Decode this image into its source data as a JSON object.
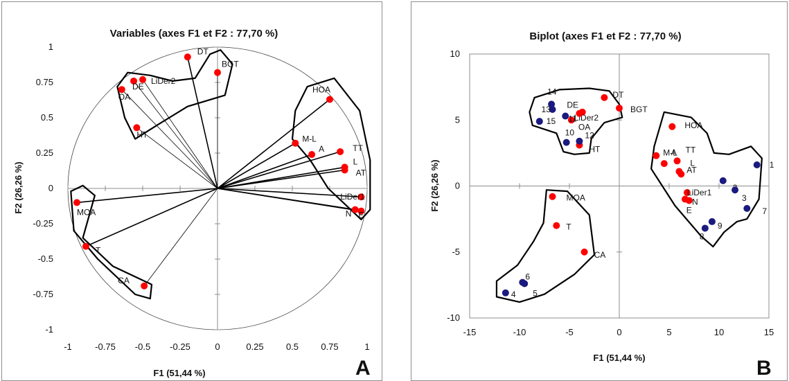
{
  "chart_data": [
    {
      "panel": "A",
      "type": "scatter",
      "title": "Variables (axes F1 et F2 : 77,70 %)",
      "xlabel": "F1 (51,44 %)",
      "ylabel": "F2 (26,26 %)",
      "panel_letter": "A",
      "xlim": [
        -1,
        1
      ],
      "ylim": [
        -1,
        1
      ],
      "xticks": [
        "-1",
        "-0.75",
        "-0.5",
        "-0.25",
        "0",
        "0.25",
        "0.5",
        "0.75",
        "1"
      ],
      "yticks": [
        "1",
        "0.75",
        "0.5",
        "0.25",
        "0",
        "-0.25",
        "-0.5",
        "-0.75",
        "-1"
      ],
      "correlation_circle": true,
      "point_color": "#ff0000",
      "points": [
        {
          "label": "DT",
          "x": -0.2,
          "y": 0.93
        },
        {
          "label": "BGT",
          "x": 0.0,
          "y": 0.82
        },
        {
          "label": "LiDer2",
          "x": -0.5,
          "y": 0.77
        },
        {
          "label": "DE",
          "x": -0.56,
          "y": 0.76
        },
        {
          "label": "OA",
          "x": -0.64,
          "y": 0.7
        },
        {
          "label": "HT",
          "x": -0.54,
          "y": 0.43
        },
        {
          "label": "HOA",
          "x": 0.75,
          "y": 0.63
        },
        {
          "label": "M-L",
          "x": 0.52,
          "y": 0.32
        },
        {
          "label": "A",
          "x": 0.63,
          "y": 0.24
        },
        {
          "label": "TT",
          "x": 0.82,
          "y": 0.26
        },
        {
          "label": "L",
          "x": 0.85,
          "y": 0.15
        },
        {
          "label": "AT",
          "x": 0.85,
          "y": 0.13
        },
        {
          "label": "LiDer1",
          "x": 0.96,
          "y": -0.06
        },
        {
          "label": "N",
          "x": 0.92,
          "y": -0.15
        },
        {
          "label": "E",
          "x": 0.96,
          "y": -0.16
        },
        {
          "label": "MOA",
          "x": -0.94,
          "y": -0.1
        },
        {
          "label": "T",
          "x": -0.88,
          "y": -0.41
        },
        {
          "label": "CA",
          "x": -0.49,
          "y": -0.69
        }
      ]
    },
    {
      "panel": "B",
      "type": "scatter",
      "title": "Biplot (axes F1 et F2 : 77,70 %)",
      "xlabel": "F1 (51,44 %)",
      "ylabel": "F2 (26,26 %)",
      "panel_letter": "B",
      "xlim": [
        -15,
        15
      ],
      "ylim": [
        -10,
        10
      ],
      "xticks": [
        "-15",
        "-10",
        "-5",
        "0",
        "5",
        "10",
        "15"
      ],
      "yticks": [
        "10",
        "5",
        "0",
        "-5",
        "-10"
      ],
      "variables_color": "#ff0000",
      "observations_color": "#1a1a80",
      "variables": [
        {
          "label": "DT",
          "x": -1.5,
          "y": 6.7
        },
        {
          "label": "BGT",
          "x": 0.0,
          "y": 5.9
        },
        {
          "label": "LiDer2",
          "x": -3.7,
          "y": 5.6
        },
        {
          "label": "DE",
          "x": -4.0,
          "y": 5.5
        },
        {
          "label": "OA",
          "x": -4.8,
          "y": 5.0
        },
        {
          "label": "HT",
          "x": -4.0,
          "y": 3.1
        },
        {
          "label": "HOA",
          "x": 5.3,
          "y": 4.5
        },
        {
          "label": "M-L",
          "x": 3.7,
          "y": 2.3
        },
        {
          "label": "A",
          "x": 4.5,
          "y": 1.7
        },
        {
          "label": "TT",
          "x": 5.8,
          "y": 1.9
        },
        {
          "label": "L",
          "x": 6.0,
          "y": 1.1
        },
        {
          "label": "AT",
          "x": 6.2,
          "y": 0.9
        },
        {
          "label": "LiDer1",
          "x": 6.8,
          "y": -0.5
        },
        {
          "label": "N",
          "x": 6.6,
          "y": -1.0
        },
        {
          "label": "E",
          "x": 7.0,
          "y": -1.1
        },
        {
          "label": "MOA",
          "x": -6.7,
          "y": -0.8
        },
        {
          "label": "T",
          "x": -6.3,
          "y": -3.0
        },
        {
          "label": "CA",
          "x": -3.5,
          "y": -5.0
        }
      ],
      "observations": [
        {
          "label": "1",
          "x": 13.8,
          "y": 1.6
        },
        {
          "label": "2",
          "x": 10.4,
          "y": 0.4
        },
        {
          "label": "3",
          "x": 11.6,
          "y": -0.3
        },
        {
          "label": "4",
          "x": -11.4,
          "y": -8.1
        },
        {
          "label": "5",
          "x": -9.5,
          "y": -7.4
        },
        {
          "label": "6",
          "x": -9.7,
          "y": -7.3
        },
        {
          "label": "7",
          "x": 12.8,
          "y": -1.7
        },
        {
          "label": "8",
          "x": 8.6,
          "y": -3.2
        },
        {
          "label": "9",
          "x": 9.3,
          "y": -2.7
        },
        {
          "label": "10",
          "x": -5.3,
          "y": 3.3
        },
        {
          "label": "11",
          "x": -5.4,
          "y": 5.3
        },
        {
          "label": "12",
          "x": -4.0,
          "y": 3.4
        },
        {
          "label": "13",
          "x": -6.7,
          "y": 5.8
        },
        {
          "label": "14",
          "x": -6.8,
          "y": 6.2
        },
        {
          "label": "15",
          "x": -8.0,
          "y": 4.9
        }
      ]
    }
  ]
}
